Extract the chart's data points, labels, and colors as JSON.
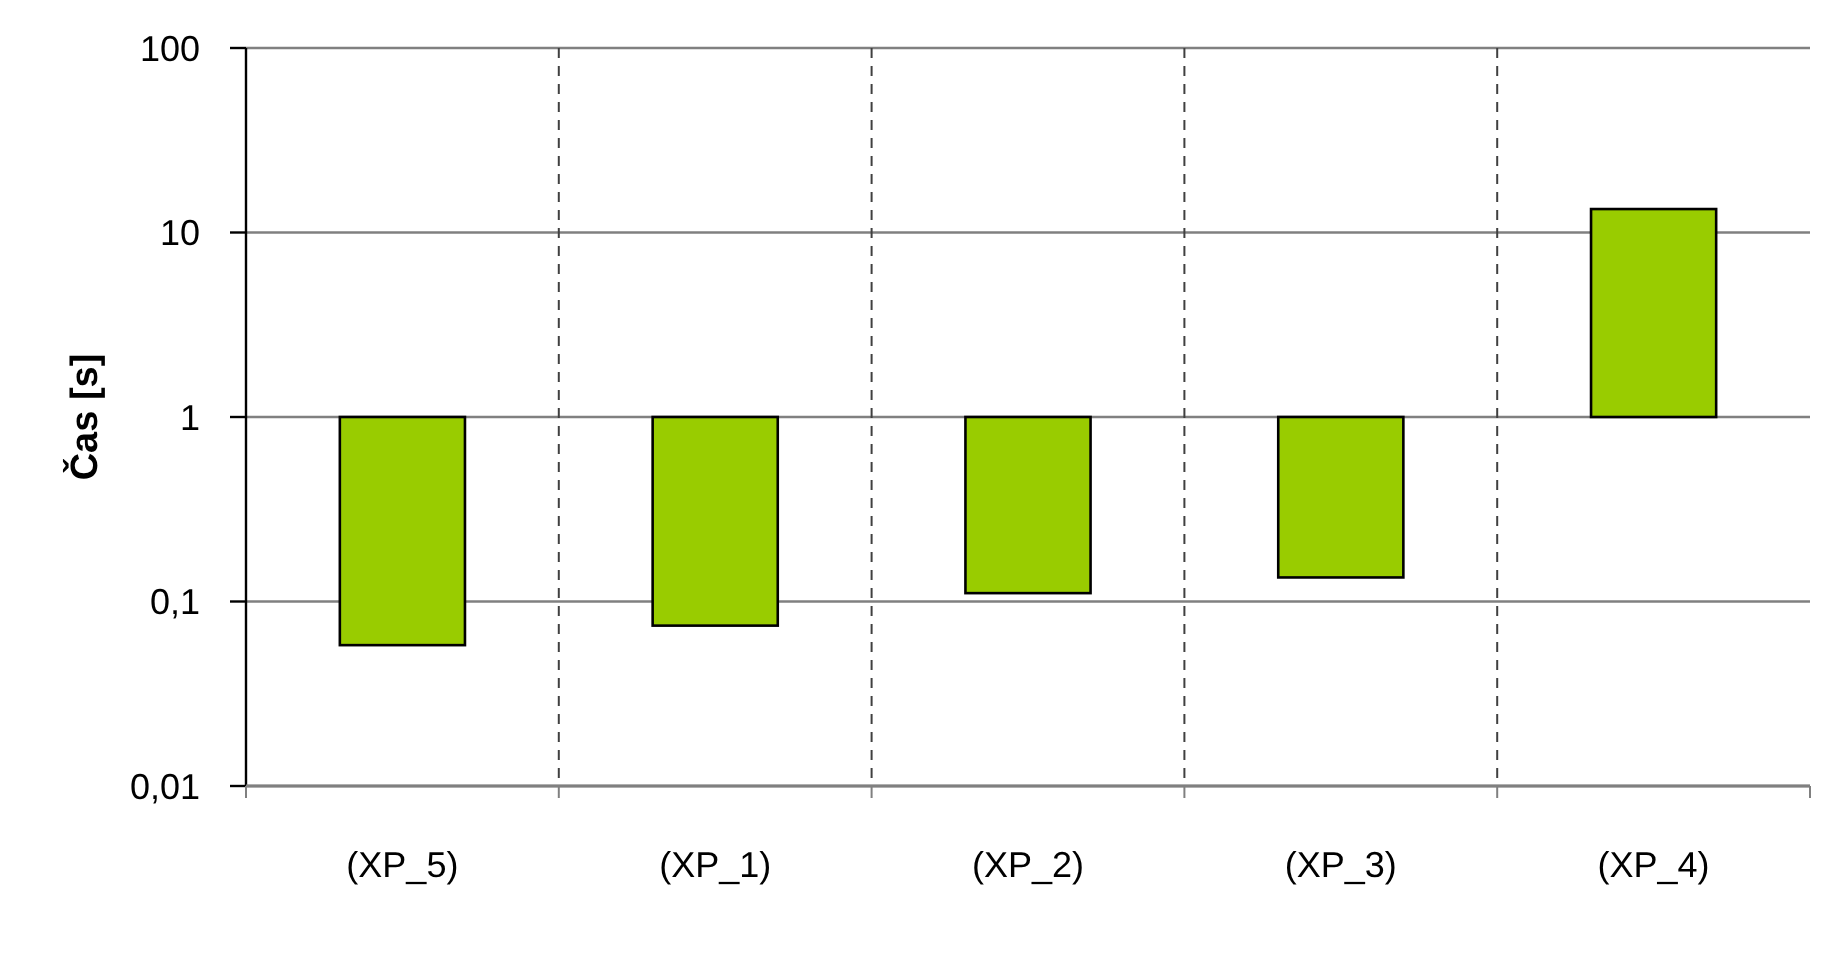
{
  "chart_data": {
    "type": "bar",
    "ylabel": "Čas [s]",
    "categories": [
      "(XP_5)",
      "(XP_1)",
      "(XP_2)",
      "(XP_3)",
      "(XP_4)"
    ],
    "base": [
      1,
      1,
      1,
      1,
      1
    ],
    "values": [
      -0.942,
      -0.926,
      -0.889,
      -0.865,
      12.4
    ],
    "color": "#99cc00",
    "log": "y",
    "ylim": [
      0.01,
      100
    ],
    "yticks": [
      {
        "value": 0.01,
        "label": "0,01"
      },
      {
        "value": 0.1,
        "label": "0,1"
      },
      1,
      10,
      100
    ],
    "grid": true
  }
}
